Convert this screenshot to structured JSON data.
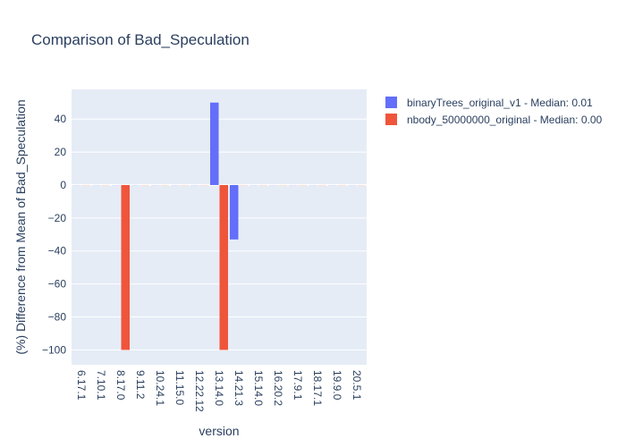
{
  "chart_data": {
    "type": "bar",
    "title": "Comparison of Bad_Speculation",
    "xlabel": "version",
    "ylabel": "(%) Difference from Mean of Bad_Speculation",
    "categories": [
      "6.17.1",
      "7.10.1",
      "8.17.0",
      "9.11.2",
      "10.24.1",
      "11.15.0",
      "12.22.12",
      "13.14.0",
      "14.21.3",
      "15.14.0",
      "16.20.2",
      "17.9.1",
      "18.17.1",
      "19.9.0",
      "20.5.1"
    ],
    "ylim": [
      -109,
      58
    ],
    "yticks": [
      40,
      20,
      0,
      -20,
      -40,
      -60,
      -80,
      -100
    ],
    "ytick_labels": [
      "40",
      "20",
      "0",
      "−20",
      "−40",
      "−60",
      "−80",
      "−100"
    ],
    "series": [
      {
        "name": "binaryTrees_original_v1 - Median: 0.01",
        "color": "#636efa",
        "values": [
          0,
          0,
          0,
          0,
          0,
          0,
          0,
          50,
          -33,
          0,
          0,
          0,
          0,
          0,
          0
        ]
      },
      {
        "name": "nbody_50000000_original - Median: 0.00",
        "color": "#ef553b",
        "values": [
          0,
          0,
          -100,
          0,
          0,
          0,
          0,
          -100,
          0,
          0,
          0,
          0,
          0,
          0,
          0
        ]
      }
    ],
    "grid": true,
    "legend_position": "top-right",
    "plot_bg": "#e5ecf6"
  }
}
